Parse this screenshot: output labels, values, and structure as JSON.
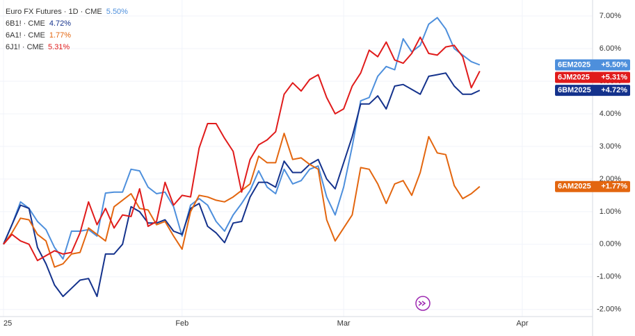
{
  "chart_data": {
    "type": "line",
    "x": [
      0,
      1,
      2,
      3,
      4,
      5,
      6,
      7,
      8,
      9,
      10,
      11,
      12,
      13,
      14,
      15,
      16,
      17,
      18,
      19,
      20,
      21,
      22,
      23,
      24,
      25,
      26,
      27,
      28,
      29,
      30,
      31,
      32,
      33,
      34,
      35,
      36,
      37,
      38,
      39,
      40,
      41,
      42,
      43,
      44,
      45,
      46,
      47,
      48,
      49,
      50,
      51,
      52,
      53,
      54,
      55,
      56
    ],
    "xlim": [
      0,
      69.1
    ],
    "xticks": [
      {
        "value": 0,
        "label": "25"
      },
      {
        "value": 21,
        "label": "Feb"
      },
      {
        "value": 40,
        "label": "Mar"
      },
      {
        "value": 61,
        "label": "Apr"
      }
    ],
    "ylim": [
      -2.26,
      7.49
    ],
    "yticks": [
      {
        "value": -2,
        "label": "-2.00%"
      },
      {
        "value": -1,
        "label": "-1.00%"
      },
      {
        "value": 0,
        "label": "0.00%"
      },
      {
        "value": 1,
        "label": "1.00%"
      },
      {
        "value": 2,
        "label": "2.00%"
      },
      {
        "value": 3,
        "label": "3.00%"
      },
      {
        "value": 4,
        "label": "4.00%"
      },
      {
        "value": 5,
        "label": "5.00%"
      },
      {
        "value": 6,
        "label": "6.00%"
      },
      {
        "value": 7,
        "label": "7.00%"
      }
    ],
    "grid": true,
    "series": [
      {
        "name": "Euro FX Futures · 1D · CME",
        "legend_label": "5.50%",
        "symbol": "6EM2025",
        "badge_label": "+5.50%",
        "color": "#4d8fdc",
        "values": [
          0,
          0.6,
          1.3,
          1.1,
          0.7,
          0.45,
          -0.1,
          -0.45,
          0.4,
          0.4,
          0.45,
          0.25,
          1.57,
          1.6,
          1.6,
          2.3,
          2.25,
          1.75,
          1.55,
          1.6,
          1.15,
          0.25,
          1.2,
          1.4,
          1.2,
          0.7,
          0.4,
          0.9,
          1.25,
          1.65,
          2.25,
          1.75,
          1.55,
          2.3,
          1.85,
          1.95,
          2.3,
          2.4,
          1.45,
          0.9,
          1.75,
          3.0,
          4.4,
          4.5,
          5.15,
          5.45,
          5.35,
          6.3,
          5.9,
          6.1,
          6.75,
          6.95,
          6.6,
          6.0,
          5.8,
          5.6,
          5.5
        ]
      },
      {
        "name": "6B1! · CME",
        "legend_label": "4.72%",
        "symbol": "6BM2025",
        "badge_label": "+4.72%",
        "color": "#14328c",
        "values": [
          0,
          0.6,
          1.2,
          1.1,
          -0.1,
          -0.6,
          -1.25,
          -1.6,
          -1.35,
          -1.1,
          -1.05,
          -1.6,
          -0.3,
          -0.3,
          0,
          1.15,
          1.0,
          0.65,
          0.65,
          0.75,
          0.4,
          0.3,
          1.1,
          1.25,
          0.55,
          0.35,
          0.05,
          0.65,
          0.7,
          1.45,
          1.9,
          1.9,
          1.75,
          2.55,
          2.2,
          2.2,
          2.45,
          2.6,
          2.0,
          1.7,
          2.5,
          3.3,
          4.3,
          4.3,
          4.55,
          4.15,
          4.85,
          4.9,
          4.75,
          4.6,
          5.15,
          5.2,
          5.25,
          4.85,
          4.6,
          4.6,
          4.72
        ]
      },
      {
        "name": "6A1! · CME",
        "legend_label": "1.77%",
        "symbol": "6AM2025",
        "badge_label": "+1.77%",
        "color": "#e3660f",
        "values": [
          0,
          0.35,
          0.8,
          0.75,
          0.3,
          0.1,
          -0.7,
          -0.6,
          -0.3,
          -0.25,
          0.5,
          0.3,
          0.1,
          1.15,
          1.35,
          1.55,
          1.1,
          1.05,
          0.6,
          0.7,
          0.25,
          -0.15,
          1.0,
          1.5,
          1.45,
          1.35,
          1.3,
          1.45,
          1.65,
          1.85,
          2.7,
          2.5,
          2.5,
          3.4,
          2.6,
          2.65,
          2.45,
          2.3,
          0.75,
          0.1,
          0.5,
          0.9,
          2.35,
          2.3,
          1.85,
          1.25,
          1.85,
          1.95,
          1.5,
          2.2,
          3.3,
          2.8,
          2.75,
          1.8,
          1.4,
          1.55,
          1.77
        ]
      },
      {
        "name": "6J1! · CME",
        "legend_label": "5.31%",
        "symbol": "6JM2025",
        "badge_label": "+5.31%",
        "color": "#e01b1b",
        "values": [
          0,
          0.3,
          0.1,
          0,
          -0.5,
          -0.35,
          -0.2,
          -0.3,
          -0.25,
          0.35,
          1.3,
          0.6,
          1.1,
          0.5,
          0.9,
          0.85,
          1.7,
          0.55,
          0.7,
          1.9,
          1.2,
          1.5,
          1.45,
          2.95,
          3.7,
          3.7,
          3.25,
          2.85,
          1.6,
          2.6,
          3.05,
          3.2,
          3.45,
          4.6,
          4.95,
          4.7,
          5.05,
          5.2,
          4.5,
          4.0,
          4.15,
          4.85,
          5.25,
          5.95,
          5.75,
          6.2,
          5.65,
          5.55,
          5.85,
          6.35,
          5.85,
          5.8,
          6.05,
          6.1,
          5.75,
          4.8,
          5.31
        ]
      }
    ]
  }
}
